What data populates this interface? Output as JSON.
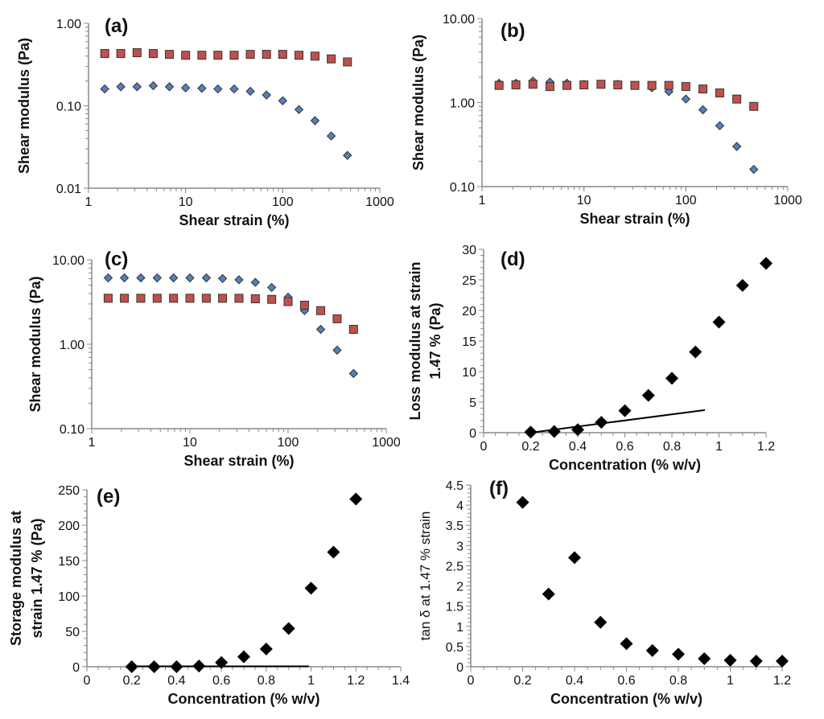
{
  "colors": {
    "series_blue": "#4f81bd",
    "series_red": "#c0504d",
    "black": "#000000",
    "axis": "#888888"
  },
  "chart_data": [
    {
      "panel": "(a)",
      "type": "scatter",
      "xscale": "log",
      "yscale": "log",
      "xlabel": "Shear strain (%)",
      "ylabel": [
        "Shear modulus (Pa)"
      ],
      "xlim": [
        1,
        1000
      ],
      "ylim": [
        0.01,
        1
      ],
      "xticks": [
        "1",
        "10",
        "100",
        "1000"
      ],
      "yticks": [
        "0.01",
        "0.10",
        "1.00"
      ],
      "x": [
        1.47,
        2.15,
        3.16,
        4.64,
        6.81,
        10,
        14.7,
        21.5,
        31.6,
        46.4,
        68.1,
        100,
        147,
        215,
        316,
        464
      ],
      "series": [
        {
          "marker": "square",
          "color": "#c0504d",
          "values": [
            0.43,
            0.43,
            0.44,
            0.43,
            0.42,
            0.41,
            0.41,
            0.41,
            0.41,
            0.42,
            0.42,
            0.42,
            0.41,
            0.4,
            0.37,
            0.34
          ]
        },
        {
          "marker": "diamond",
          "color": "#4f81bd",
          "values": [
            0.16,
            0.17,
            0.17,
            0.175,
            0.17,
            0.165,
            0.163,
            0.16,
            0.16,
            0.15,
            0.135,
            0.115,
            0.09,
            0.066,
            0.043,
            0.025
          ]
        }
      ]
    },
    {
      "panel": "(b)",
      "type": "scatter",
      "xscale": "log",
      "yscale": "log",
      "xlabel": "Shear strain (%)",
      "ylabel": [
        "Shear modulus (Pa)"
      ],
      "xlim": [
        1,
        1000
      ],
      "ylim": [
        0.1,
        10
      ],
      "xticks": [
        "1",
        "10",
        "100",
        "1000"
      ],
      "yticks": [
        "0.10",
        "1.00",
        "10.00"
      ],
      "x": [
        1.47,
        2.15,
        3.16,
        4.64,
        6.81,
        10,
        14.7,
        21.5,
        31.6,
        46.4,
        68.1,
        100,
        147,
        215,
        316,
        464
      ],
      "series": [
        {
          "marker": "diamond",
          "color": "#4f81bd",
          "values": [
            1.7,
            1.7,
            1.8,
            1.75,
            1.7,
            1.65,
            1.65,
            1.65,
            1.6,
            1.5,
            1.35,
            1.1,
            0.82,
            0.53,
            0.3,
            0.16
          ]
        },
        {
          "marker": "square",
          "color": "#c0504d",
          "values": [
            1.6,
            1.62,
            1.65,
            1.55,
            1.6,
            1.62,
            1.65,
            1.62,
            1.6,
            1.6,
            1.6,
            1.55,
            1.45,
            1.3,
            1.1,
            0.9
          ]
        }
      ]
    },
    {
      "panel": "(c)",
      "type": "scatter",
      "xscale": "log",
      "yscale": "log",
      "xlabel": "Shear strain (%)",
      "ylabel": [
        "Shear modulus (Pa)"
      ],
      "xlim": [
        1,
        1000
      ],
      "ylim": [
        0.1,
        10
      ],
      "xticks": [
        "1",
        "10",
        "100",
        "1000"
      ],
      "yticks": [
        "0.10",
        "1.00",
        "10.00"
      ],
      "x": [
        1.47,
        2.15,
        3.16,
        4.64,
        6.81,
        10,
        14.7,
        21.5,
        31.6,
        46.4,
        68.1,
        100,
        147,
        215,
        316,
        464
      ],
      "series": [
        {
          "marker": "diamond",
          "color": "#4f81bd",
          "values": [
            6.1,
            6.1,
            6.1,
            6.1,
            6.1,
            6.1,
            6.1,
            6.0,
            5.8,
            5.4,
            4.7,
            3.6,
            2.5,
            1.5,
            0.85,
            0.45
          ]
        },
        {
          "marker": "square",
          "color": "#c0504d",
          "values": [
            3.5,
            3.5,
            3.5,
            3.5,
            3.5,
            3.5,
            3.5,
            3.5,
            3.5,
            3.45,
            3.4,
            3.2,
            2.9,
            2.5,
            2.0,
            1.5
          ]
        }
      ]
    },
    {
      "panel": "(d)",
      "type": "scatter",
      "xscale": "linear",
      "yscale": "linear",
      "xlabel": "Concentration (% w/v)",
      "ylabel": [
        "Loss modulus at strain",
        "1.47 % (Pa)"
      ],
      "xlim": [
        0,
        1.2
      ],
      "ylim": [
        0,
        30
      ],
      "xstep": 0.2,
      "ystep": 5,
      "xminor": 0.05,
      "yminor": 1,
      "xticks": [
        "0",
        "0.2",
        "0.4",
        "0.6",
        "0.8",
        "1",
        "1.2"
      ],
      "yticks": [
        "0",
        "5",
        "10",
        "15",
        "20",
        "25",
        "30"
      ],
      "x": [
        0.2,
        0.3,
        0.4,
        0.5,
        0.6,
        0.7,
        0.8,
        0.9,
        1.0,
        1.1,
        1.2
      ],
      "series": [
        {
          "marker": "diamond-large",
          "color": "#000000",
          "values": [
            0.1,
            0.2,
            0.5,
            1.7,
            3.6,
            6.1,
            8.9,
            13.2,
            18.1,
            24.1,
            27.7
          ]
        }
      ],
      "trendline": {
        "x": [
          0.2,
          0.94
        ],
        "y": [
          0,
          3.7
        ]
      }
    },
    {
      "panel": "(e)",
      "type": "scatter",
      "xscale": "linear",
      "yscale": "linear",
      "xlabel": "Concentration (% w/v)",
      "ylabel": [
        "Storage modulus at",
        "strain 1.47 % (Pa)"
      ],
      "xlim": [
        0,
        1.4
      ],
      "ylim": [
        0,
        250
      ],
      "xstep": 0.2,
      "ystep": 50,
      "xminor": 0.05,
      "yminor": 10,
      "xticks": [
        "0",
        "0.2",
        "0.4",
        "0.6",
        "0.8",
        "1",
        "1.2",
        "1.4"
      ],
      "yticks": [
        "0",
        "50",
        "100",
        "150",
        "200",
        "250"
      ],
      "x": [
        0.2,
        0.3,
        0.4,
        0.5,
        0.6,
        0.7,
        0.8,
        0.9,
        1.0,
        1.1,
        1.2
      ],
      "series": [
        {
          "marker": "diamond-large",
          "color": "#000000",
          "values": [
            0,
            0,
            0,
            1,
            6,
            14,
            25,
            54,
            111,
            162,
            237
          ]
        }
      ],
      "trendline": {
        "x": [
          0.18,
          0.99
        ],
        "y": [
          0.5,
          0.5
        ]
      }
    },
    {
      "panel": "(f)",
      "type": "scatter",
      "xscale": "linear",
      "yscale": "linear",
      "xlabel": "Concentration (% w/v)",
      "ylabel": [
        "tan δ at 1.47 % strain"
      ],
      "xlim": [
        0,
        1.2
      ],
      "ylim": [
        0,
        4.5
      ],
      "xstep": 0.2,
      "ystep": 0.5,
      "xminor": 0.05,
      "yminor": 0.1,
      "xticks": [
        "0",
        "0.2",
        "0.4",
        "0.6",
        "0.8",
        "1",
        "1.2"
      ],
      "yticks": [
        "0",
        "0.5",
        "1",
        "1.5",
        "2",
        "2.5",
        "3",
        "3.5",
        "4",
        "4.5"
      ],
      "x": [
        0.2,
        0.3,
        0.4,
        0.5,
        0.6,
        0.7,
        0.8,
        0.9,
        1.0,
        1.1,
        1.2
      ],
      "series": [
        {
          "marker": "diamond-large",
          "color": "#000000",
          "values": [
            4.07,
            1.8,
            2.7,
            1.1,
            0.57,
            0.4,
            0.31,
            0.2,
            0.16,
            0.14,
            0.14
          ]
        }
      ]
    }
  ]
}
